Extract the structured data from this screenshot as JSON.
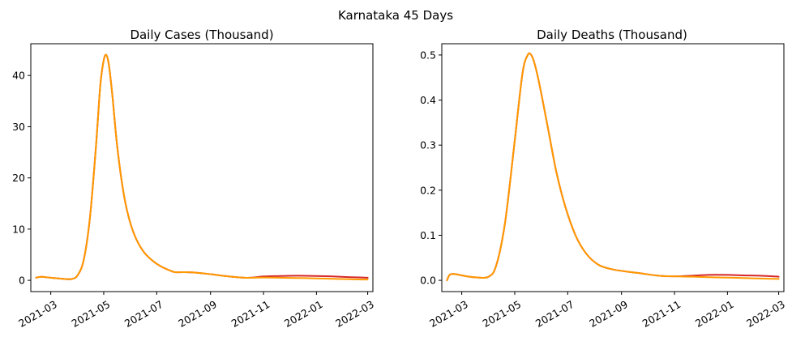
{
  "figure": {
    "suptitle": "Karnataka 45 Days"
  },
  "colors": {
    "red": "#d62728",
    "orange": "#ff9900",
    "spine": "#000000",
    "text": "#000000"
  },
  "chart_data": [
    {
      "type": "line",
      "title": "Daily Cases (Thousand)",
      "xlim": [
        "2021-02-06",
        "2022-03-07"
      ],
      "ylim": [
        -2.2,
        46.2
      ],
      "yticks": [
        0,
        10,
        20,
        30,
        40
      ],
      "ytick_labels": [
        "0",
        "10",
        "20",
        "30",
        "40"
      ],
      "xticks": [
        "2021-03-01",
        "2021-05-01",
        "2021-07-01",
        "2021-09-01",
        "2021-11-01",
        "2022-01-01",
        "2022-03-01"
      ],
      "xtick_labels": [
        "2021-03",
        "2021-05",
        "2021-07",
        "2021-09",
        "2021-11",
        "2022-01",
        "2022-03"
      ],
      "series": [
        {
          "color": "red",
          "x": [
            "2021-02-12",
            "2021-02-18",
            "2021-03-01",
            "2021-03-15",
            "2021-03-25",
            "2021-04-01",
            "2021-04-08",
            "2021-04-15",
            "2021-04-22",
            "2021-04-27",
            "2021-05-01",
            "2021-05-04",
            "2021-05-07",
            "2021-05-11",
            "2021-05-16",
            "2021-05-22",
            "2021-05-28",
            "2021-06-05",
            "2021-06-15",
            "2021-06-25",
            "2021-07-05",
            "2021-07-15",
            "2021-07-22",
            "2021-08-01",
            "2021-08-15",
            "2021-09-01",
            "2021-09-20",
            "2021-10-10",
            "2021-10-20",
            "2021-11-01",
            "2021-11-20",
            "2021-12-10",
            "2022-01-01",
            "2022-01-20",
            "2022-02-10",
            "2022-03-01"
          ],
          "y": [
            0.5,
            0.7,
            0.5,
            0.3,
            0.25,
            1.0,
            4.0,
            12.0,
            26.0,
            38.0,
            43.0,
            44.0,
            42.0,
            36.0,
            27.0,
            19.0,
            13.5,
            9.0,
            5.8,
            4.0,
            2.8,
            2.0,
            1.6,
            1.6,
            1.5,
            1.2,
            0.8,
            0.5,
            0.55,
            0.75,
            0.85,
            0.9,
            0.85,
            0.75,
            0.62,
            0.5
          ]
        },
        {
          "color": "orange",
          "x": [
            "2021-02-12",
            "2021-02-18",
            "2021-03-01",
            "2021-03-15",
            "2021-03-25",
            "2021-04-01",
            "2021-04-08",
            "2021-04-15",
            "2021-04-22",
            "2021-04-27",
            "2021-05-01",
            "2021-05-04",
            "2021-05-07",
            "2021-05-11",
            "2021-05-16",
            "2021-05-22",
            "2021-05-28",
            "2021-06-05",
            "2021-06-15",
            "2021-06-25",
            "2021-07-05",
            "2021-07-15",
            "2021-07-22",
            "2021-08-01",
            "2021-08-15",
            "2021-09-01",
            "2021-09-20",
            "2021-10-10",
            "2021-10-20",
            "2021-11-01",
            "2021-11-20",
            "2021-12-10",
            "2022-01-01",
            "2022-01-20",
            "2022-02-10",
            "2022-03-01"
          ],
          "y": [
            0.5,
            0.7,
            0.5,
            0.3,
            0.25,
            1.0,
            4.0,
            12.0,
            26.0,
            38.0,
            43.0,
            44.0,
            42.0,
            36.0,
            27.0,
            19.0,
            13.5,
            9.0,
            5.8,
            4.0,
            2.8,
            2.0,
            1.6,
            1.6,
            1.5,
            1.2,
            0.8,
            0.5,
            0.5,
            0.55,
            0.5,
            0.45,
            0.38,
            0.3,
            0.22,
            0.15
          ]
        }
      ]
    },
    {
      "type": "line",
      "title": "Daily Deaths (Thousand)",
      "xlim": [
        "2021-02-06",
        "2022-03-07"
      ],
      "ylim": [
        -0.025,
        0.525
      ],
      "yticks": [
        0.0,
        0.1,
        0.2,
        0.3,
        0.4,
        0.5
      ],
      "ytick_labels": [
        "0.0",
        "0.1",
        "0.2",
        "0.3",
        "0.4",
        "0.5"
      ],
      "xticks": [
        "2021-03-01",
        "2021-05-01",
        "2021-07-01",
        "2021-09-01",
        "2021-11-01",
        "2022-01-01",
        "2022-03-01"
      ],
      "xtick_labels": [
        "2021-03",
        "2021-05",
        "2021-07",
        "2021-09",
        "2021-11",
        "2022-01",
        "2022-03"
      ],
      "series": [
        {
          "color": "red",
          "x": [
            "2021-02-12",
            "2021-02-15",
            "2021-02-20",
            "2021-03-01",
            "2021-03-15",
            "2021-04-01",
            "2021-04-10",
            "2021-04-20",
            "2021-05-01",
            "2021-05-10",
            "2021-05-16",
            "2021-05-20",
            "2021-05-24",
            "2021-05-30",
            "2021-06-08",
            "2021-06-18",
            "2021-06-28",
            "2021-07-10",
            "2021-07-22",
            "2021-08-05",
            "2021-08-20",
            "2021-09-05",
            "2021-09-25",
            "2021-10-15",
            "2021-11-01",
            "2021-11-20",
            "2021-12-10",
            "2022-01-01",
            "2022-01-20",
            "2022-02-10",
            "2022-03-01"
          ],
          "y": [
            0.0,
            0.012,
            0.014,
            0.011,
            0.007,
            0.008,
            0.035,
            0.13,
            0.31,
            0.46,
            0.5,
            0.5,
            0.48,
            0.43,
            0.34,
            0.24,
            0.165,
            0.1,
            0.06,
            0.035,
            0.025,
            0.02,
            0.015,
            0.01,
            0.009,
            0.01,
            0.012,
            0.012,
            0.011,
            0.01,
            0.008
          ]
        },
        {
          "color": "orange",
          "x": [
            "2021-02-12",
            "2021-02-15",
            "2021-02-20",
            "2021-03-01",
            "2021-03-15",
            "2021-04-01",
            "2021-04-10",
            "2021-04-20",
            "2021-05-01",
            "2021-05-10",
            "2021-05-16",
            "2021-05-20",
            "2021-05-24",
            "2021-05-30",
            "2021-06-08",
            "2021-06-18",
            "2021-06-28",
            "2021-07-10",
            "2021-07-22",
            "2021-08-05",
            "2021-08-20",
            "2021-09-05",
            "2021-09-25",
            "2021-10-15",
            "2021-11-01",
            "2021-11-20",
            "2021-12-10",
            "2022-01-01",
            "2022-01-20",
            "2022-02-10",
            "2022-03-01"
          ],
          "y": [
            0.0,
            0.012,
            0.014,
            0.011,
            0.007,
            0.008,
            0.035,
            0.13,
            0.31,
            0.46,
            0.5,
            0.5,
            0.48,
            0.43,
            0.34,
            0.24,
            0.165,
            0.1,
            0.06,
            0.035,
            0.025,
            0.02,
            0.015,
            0.01,
            0.009,
            0.008,
            0.007,
            0.006,
            0.005,
            0.004,
            0.003
          ]
        }
      ]
    }
  ]
}
